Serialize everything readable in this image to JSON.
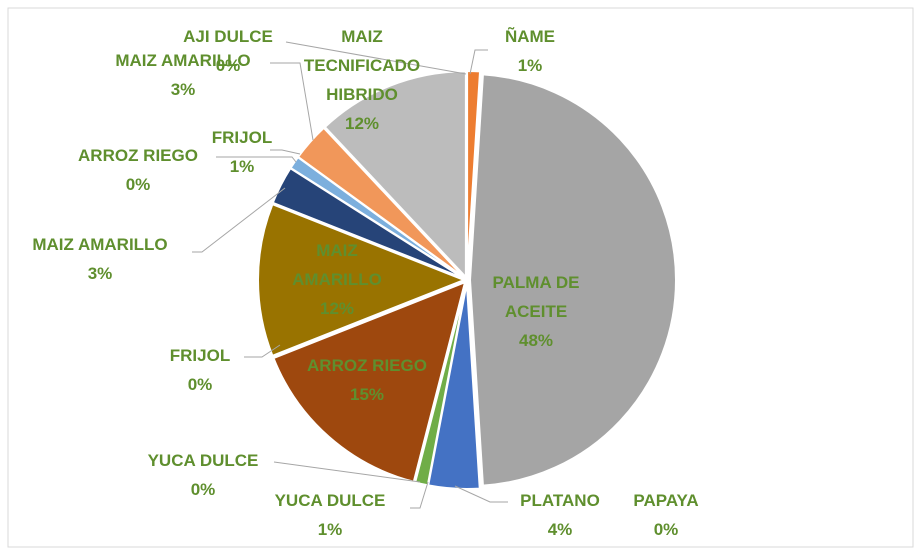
{
  "chart_data": {
    "type": "pie",
    "categories": [
      "ÑAME",
      "PALMA DE ACEITE",
      "PLATANO",
      "PAPAYA",
      "YUCA  DULCE",
      "YUCA  DULCE",
      "ARROZ  RIEGO",
      "FRIJOL",
      "MAIZ AMARILLO",
      "MAIZ AMARILLO",
      "ARROZ  RIEGO",
      "FRIJOL",
      "MAIZ AMARILLO",
      "AJI  DULCE",
      "MAIZ TECNIFICADO HIBRIDO"
    ],
    "values": [
      1,
      48,
      4,
      0,
      1,
      0,
      15,
      0,
      12,
      3,
      0,
      1,
      3,
      0,
      12
    ],
    "value_labels": [
      "1%",
      "48%",
      "4%",
      "0%",
      "1%",
      "0%",
      "15%",
      "0%",
      "12%",
      "3%",
      "0%",
      "1%",
      "3%",
      "0%",
      "12%"
    ],
    "colors": [
      "#ed7d31",
      "#a5a5a5",
      "#4472c4",
      "#5b9bd5",
      "#70ad47",
      "#264478",
      "#9e480e",
      "#636363",
      "#997300",
      "#264478",
      "#43682b",
      "#7cafdd",
      "#f1975a",
      "#b7b7b7",
      "#bcbcbc"
    ]
  }
}
